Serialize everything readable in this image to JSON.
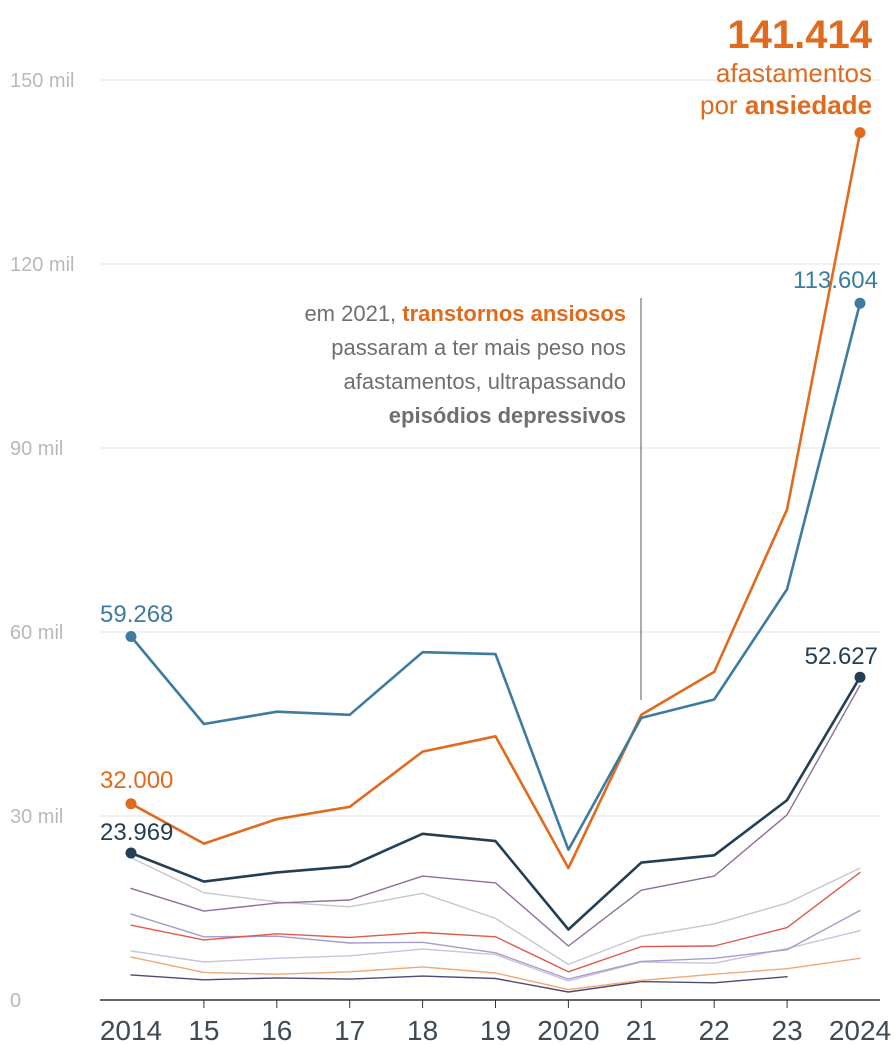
{
  "chart_data": {
    "type": "line",
    "x": [
      "2014",
      "15",
      "16",
      "17",
      "18",
      "19",
      "2020",
      "21",
      "22",
      "23",
      "2024"
    ],
    "ylim": [
      0,
      150000
    ],
    "yticks": [
      0,
      30000,
      60000,
      90000,
      120000,
      150000
    ],
    "ytick_labels": [
      "0",
      "30 mil",
      "60 mil",
      "90 mil",
      "120 mil",
      "150 mil"
    ],
    "grid": true,
    "series": [
      {
        "color": "#3d7ba0",
        "width": 2.6,
        "dots": "both",
        "values": [
          59268,
          45000,
          47000,
          46500,
          56700,
          56400,
          24500,
          46000,
          49000,
          67000,
          113604
        ]
      },
      {
        "color": "#e06a1d",
        "width": 2.6,
        "dots": "both",
        "values": [
          32000,
          25500,
          29500,
          31500,
          40500,
          43000,
          21500,
          46500,
          53500,
          80000,
          141414
        ]
      },
      {
        "color": "#233f55",
        "width": 2.6,
        "dots": "both",
        "values": [
          23969,
          19300,
          20800,
          21800,
          27100,
          25900,
          11500,
          22400,
          23600,
          32600,
          52627
        ]
      },
      {
        "color": "#8e6f9b",
        "width": 1.4,
        "values": [
          18200,
          14500,
          15800,
          16300,
          20200,
          19100,
          8800,
          17900,
          20200,
          30200,
          51300
        ]
      },
      {
        "color": "#c6c6ce",
        "width": 1.4,
        "values": [
          23200,
          17500,
          16000,
          15200,
          17400,
          13300,
          5800,
          10400,
          12400,
          15800,
          21500
        ]
      },
      {
        "color": "#e05a4a",
        "width": 1.4,
        "values": [
          12200,
          9800,
          10800,
          10200,
          11000,
          10300,
          4600,
          8700,
          8800,
          11800,
          20800
        ]
      },
      {
        "color": "#a69ccc",
        "width": 1.4,
        "values": [
          14000,
          10300,
          10400,
          9300,
          9400,
          7700,
          3400,
          6300,
          6800,
          8200,
          14600
        ]
      },
      {
        "color": "#c8c3dd",
        "width": 1.4,
        "values": [
          8000,
          6200,
          6800,
          7200,
          8300,
          7400,
          3100,
          6200,
          6000,
          8400,
          11300
        ]
      },
      {
        "color": "#efa876",
        "width": 1.4,
        "values": [
          7000,
          4500,
          4200,
          4600,
          5400,
          4400,
          1700,
          3200,
          4200,
          5100,
          6800
        ]
      },
      {
        "color": "#4e4a78",
        "width": 1.4,
        "values": [
          4100,
          3300,
          3600,
          3400,
          3900,
          3500,
          1300,
          3000,
          2800,
          3800,
          null
        ]
      }
    ],
    "value_labels": {
      "ansiedade_end": "141.414",
      "depressivos_end": "113.604",
      "depressivos_start": "59.268",
      "ansiedade_start": "32.000",
      "third_start": "23.969",
      "third_end": "52.627"
    },
    "headline": {
      "line1": "afastamentos",
      "line2_prefix": "por ",
      "line2_bold": "ansiedade"
    },
    "annotation": {
      "line1_prefix": "em 2021, ",
      "line1_bold": "transtornos ansiosos",
      "line2": "passaram a ter mais peso nos",
      "line3": "afastamentos, ultrapassando",
      "line4_bold": "episódios depressivos"
    },
    "colors": {
      "orange": "#e06a1d",
      "blue": "#3d7ba0",
      "navy": "#233f55",
      "grid": "#e3e3e3",
      "axis": "#333333"
    }
  }
}
